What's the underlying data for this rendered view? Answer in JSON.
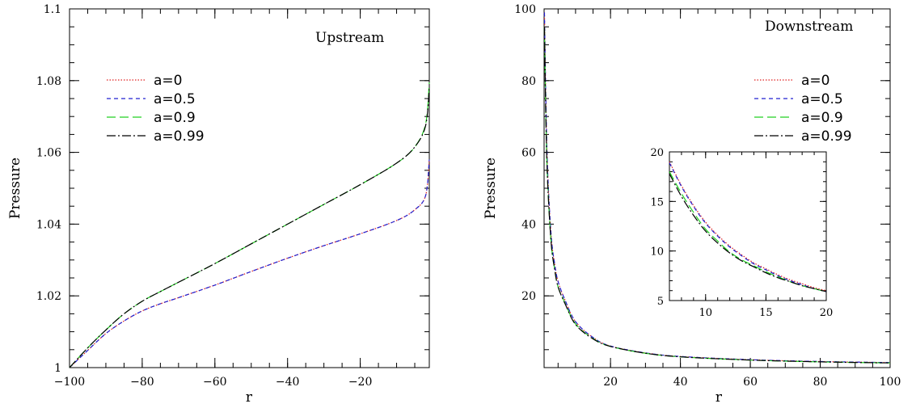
{
  "chart_data": [
    {
      "type": "line",
      "title": "Upstream",
      "xlabel": "r",
      "ylabel": "Pressure",
      "xlim": [
        -100,
        -1
      ],
      "ylim": [
        1.0,
        1.1
      ],
      "xticks": [
        -100,
        -80,
        -60,
        -40,
        -20
      ],
      "xtick_labels": [
        "−100",
        "−80",
        "−60",
        "−40",
        "−20"
      ],
      "yticks": [
        1.0,
        1.02,
        1.04,
        1.06,
        1.08,
        1.1
      ],
      "ytick_labels": [
        "1",
        "1.02",
        "1.04",
        "1.06",
        "1.08",
        "1.1"
      ],
      "legend_position": "upper-left",
      "series": [
        {
          "name": "a=0",
          "color": "#e02020",
          "dash": "1.5,2",
          "x": [
            -100,
            -95,
            -90,
            -85,
            -80,
            -75,
            -70,
            -60,
            -50,
            -40,
            -30,
            -20,
            -10,
            -5,
            -2,
            -1
          ],
          "y": [
            1.0,
            1.0048,
            1.0095,
            1.013,
            1.0158,
            1.0178,
            1.0195,
            1.023,
            1.0268,
            1.0305,
            1.034,
            1.0373,
            1.041,
            1.044,
            1.048,
            1.058
          ]
        },
        {
          "name": "a=0.5",
          "color": "#2020d0",
          "dash": "5,4",
          "x": [
            -100,
            -95,
            -90,
            -85,
            -80,
            -75,
            -70,
            -60,
            -50,
            -40,
            -30,
            -20,
            -10,
            -5,
            -2,
            -1
          ],
          "y": [
            1.0,
            1.0048,
            1.0095,
            1.013,
            1.0158,
            1.0178,
            1.0195,
            1.023,
            1.0268,
            1.0305,
            1.034,
            1.0373,
            1.041,
            1.044,
            1.048,
            1.058
          ]
        },
        {
          "name": "a=0.9",
          "color": "#20d020",
          "dash": "11,5",
          "x": [
            -100,
            -95,
            -90,
            -85,
            -80,
            -75,
            -70,
            -60,
            -50,
            -40,
            -30,
            -20,
            -10,
            -5,
            -2,
            -1
          ],
          "y": [
            1.0,
            1.0055,
            1.0105,
            1.015,
            1.0185,
            1.0212,
            1.0238,
            1.029,
            1.0345,
            1.04,
            1.0455,
            1.051,
            1.057,
            1.0615,
            1.068,
            1.0795
          ]
        },
        {
          "name": "a=0.99",
          "color": "#000000",
          "dash": "11,3,2,3",
          "x": [
            -100,
            -95,
            -90,
            -85,
            -80,
            -75,
            -70,
            -60,
            -50,
            -40,
            -30,
            -20,
            -10,
            -5,
            -2,
            -1
          ],
          "y": [
            1.0,
            1.0055,
            1.0105,
            1.015,
            1.0185,
            1.0212,
            1.0238,
            1.029,
            1.0345,
            1.04,
            1.0455,
            1.051,
            1.057,
            1.0615,
            1.0675,
            1.078
          ]
        }
      ]
    },
    {
      "type": "line",
      "title": "Downstream",
      "xlabel": "r",
      "ylabel": "Pressure",
      "xlim": [
        1,
        100
      ],
      "ylim": [
        0,
        100
      ],
      "xticks": [
        20,
        40,
        60,
        80,
        100
      ],
      "xtick_labels": [
        "20",
        "40",
        "60",
        "80",
        "100"
      ],
      "yticks": [
        20,
        40,
        60,
        80,
        100
      ],
      "ytick_labels": [
        "20",
        "40",
        "60",
        "80",
        "100"
      ],
      "legend_position": "upper-right",
      "series": [
        {
          "name": "a=0",
          "color": "#e02020",
          "dash": "1.5,2",
          "x": [
            1.1,
            1.5,
            2,
            3,
            4,
            5,
            7,
            10,
            15,
            20,
            30,
            40,
            60,
            80,
            100
          ],
          "y": [
            99,
            75,
            55,
            37,
            29,
            24,
            18.8,
            12.8,
            8.4,
            6.0,
            4.1,
            3.1,
            2.2,
            1.7,
            1.4
          ]
        },
        {
          "name": "a=0.5",
          "color": "#2020d0",
          "dash": "5,4",
          "x": [
            1.1,
            1.5,
            2,
            3,
            4,
            5,
            7,
            10,
            15,
            20,
            30,
            40,
            60,
            80,
            100
          ],
          "y": [
            99,
            75,
            55,
            37,
            29,
            24,
            18.8,
            12.8,
            8.4,
            6.0,
            4.1,
            3.1,
            2.2,
            1.7,
            1.4
          ]
        },
        {
          "name": "a=0.9",
          "color": "#20d020",
          "dash": "11,5",
          "x": [
            1.1,
            1.5,
            2,
            3,
            4,
            5,
            7,
            10,
            15,
            20,
            30,
            40,
            60,
            80,
            100
          ],
          "y": [
            95,
            70,
            52,
            35,
            27.5,
            22.5,
            18.0,
            12.2,
            8.1,
            5.9,
            4.0,
            3.0,
            2.1,
            1.6,
            1.3
          ]
        },
        {
          "name": "a=0.99",
          "color": "#000000",
          "dash": "11,3,2,3",
          "x": [
            1.1,
            1.5,
            2,
            3,
            4,
            5,
            7,
            10,
            15,
            20,
            30,
            40,
            60,
            80,
            100
          ],
          "y": [
            95,
            70,
            52,
            35,
            27.5,
            22.5,
            17.8,
            12.0,
            8.0,
            5.9,
            4.0,
            3.0,
            2.1,
            1.6,
            1.3
          ]
        }
      ],
      "inset": {
        "xlim": [
          7,
          20
        ],
        "ylim": [
          5,
          20
        ],
        "xticks": [
          10,
          15,
          20
        ],
        "xtick_labels": [
          "10",
          "15",
          "20"
        ],
        "yticks": [
          5,
          10,
          15,
          20
        ],
        "ytick_labels": [
          "5",
          "10",
          "15",
          "20"
        ],
        "series": [
          {
            "color": "#e02020",
            "dash": "1.5,2",
            "x": [
              7,
              8,
              9,
              10,
              11,
              12,
              13,
              14,
              15,
              16,
              17,
              18,
              19,
              20
            ],
            "y": [
              19.0,
              16.6,
              14.6,
              12.9,
              11.6,
              10.5,
              9.6,
              8.8,
              8.2,
              7.6,
              7.1,
              6.7,
              6.3,
              6.0
            ]
          },
          {
            "color": "#2020d0",
            "dash": "5,4",
            "x": [
              7,
              8,
              9,
              10,
              11,
              12,
              13,
              14,
              15,
              16,
              17,
              18,
              19,
              20
            ],
            "y": [
              18.9,
              16.5,
              14.5,
              12.8,
              11.5,
              10.4,
              9.5,
              8.7,
              8.1,
              7.5,
              7.0,
              6.6,
              6.2,
              5.9
            ]
          },
          {
            "color": "#20d020",
            "dash": "11,5",
            "x": [
              7,
              8,
              9,
              10,
              11,
              12,
              13,
              14,
              15,
              16,
              17,
              18,
              19,
              20
            ],
            "y": [
              18.0,
              15.8,
              13.9,
              12.2,
              11.0,
              9.9,
              9.1,
              8.5,
              7.9,
              7.4,
              6.9,
              6.5,
              6.2,
              5.9
            ]
          },
          {
            "color": "#000000",
            "dash": "11,3,2,3",
            "x": [
              7,
              8,
              9,
              10,
              11,
              12,
              13,
              14,
              15,
              16,
              17,
              18,
              19,
              20
            ],
            "y": [
              17.8,
              15.5,
              13.6,
              12.0,
              10.8,
              9.8,
              9.0,
              8.4,
              7.8,
              7.3,
              6.9,
              6.5,
              6.2,
              5.9
            ]
          }
        ]
      }
    }
  ]
}
